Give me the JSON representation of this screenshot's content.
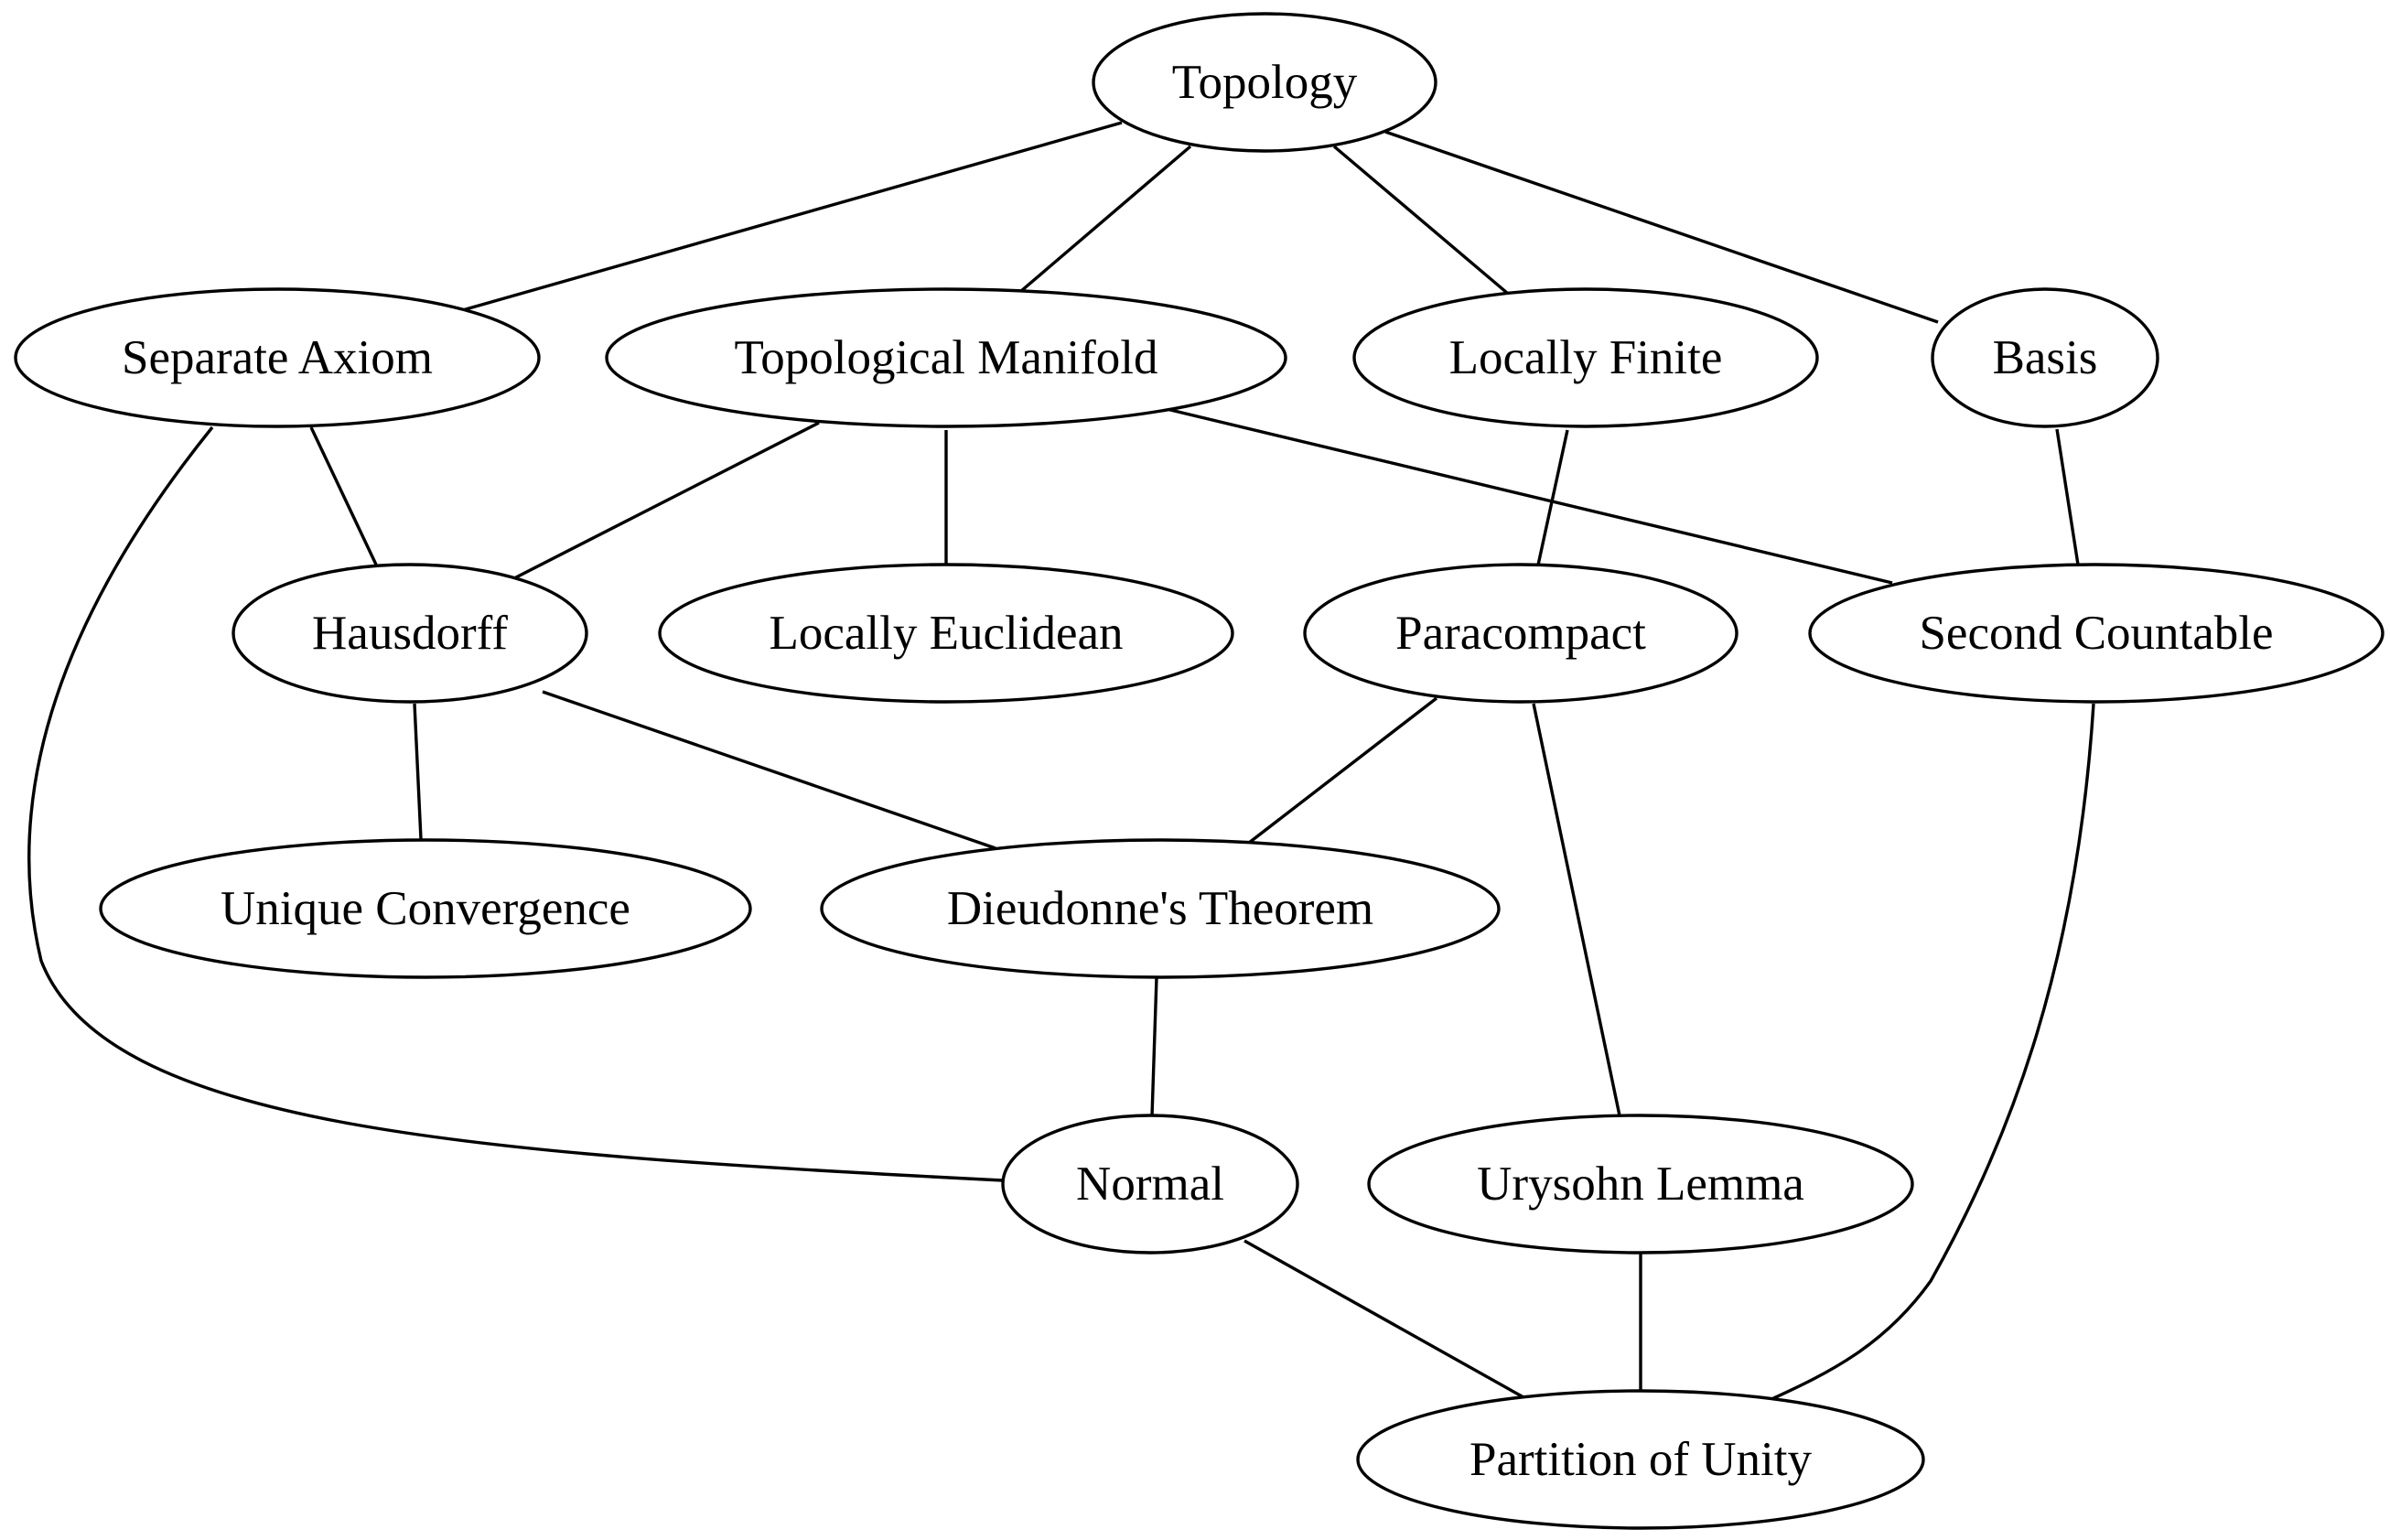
{
  "nodes": [
    {
      "id": "topology",
      "label": "Topology"
    },
    {
      "id": "separate-axiom",
      "label": "Separate Axiom"
    },
    {
      "id": "topological-manifold",
      "label": "Topological Manifold"
    },
    {
      "id": "locally-finite",
      "label": "Locally Finite"
    },
    {
      "id": "basis",
      "label": "Basis"
    },
    {
      "id": "hausdorff",
      "label": "Hausdorff"
    },
    {
      "id": "locally-euclidean",
      "label": "Locally Euclidean"
    },
    {
      "id": "paracompact",
      "label": "Paracompact"
    },
    {
      "id": "second-countable",
      "label": "Second Countable"
    },
    {
      "id": "unique-convergence",
      "label": "Unique Convergence"
    },
    {
      "id": "dieudonnes-theorem",
      "label": "Dieudonne's Theorem"
    },
    {
      "id": "normal",
      "label": "Normal"
    },
    {
      "id": "urysohn-lemma",
      "label": "Urysohn Lemma"
    },
    {
      "id": "partition-of-unity",
      "label": "Partition of Unity"
    }
  ],
  "edges": [
    {
      "from": "topology",
      "to": "separate-axiom"
    },
    {
      "from": "topology",
      "to": "topological-manifold"
    },
    {
      "from": "topology",
      "to": "locally-finite"
    },
    {
      "from": "topology",
      "to": "basis"
    },
    {
      "from": "separate-axiom",
      "to": "hausdorff"
    },
    {
      "from": "separate-axiom",
      "to": "normal"
    },
    {
      "from": "topological-manifold",
      "to": "hausdorff"
    },
    {
      "from": "topological-manifold",
      "to": "locally-euclidean"
    },
    {
      "from": "topological-manifold",
      "to": "second-countable"
    },
    {
      "from": "locally-finite",
      "to": "paracompact"
    },
    {
      "from": "basis",
      "to": "second-countable"
    },
    {
      "from": "hausdorff",
      "to": "unique-convergence"
    },
    {
      "from": "hausdorff",
      "to": "dieudonnes-theorem"
    },
    {
      "from": "paracompact",
      "to": "dieudonnes-theorem"
    },
    {
      "from": "paracompact",
      "to": "urysohn-lemma"
    },
    {
      "from": "second-countable",
      "to": "partition-of-unity"
    },
    {
      "from": "dieudonnes-theorem",
      "to": "normal"
    },
    {
      "from": "normal",
      "to": "partition-of-unity"
    },
    {
      "from": "urysohn-lemma",
      "to": "partition-of-unity"
    }
  ]
}
